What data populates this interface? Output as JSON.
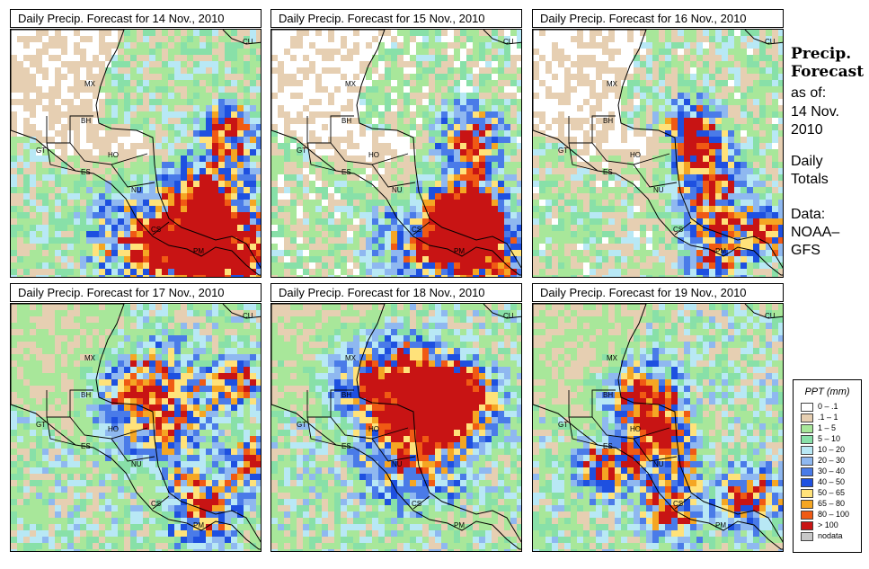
{
  "panels": [
    {
      "title": "Daily Precip. Forecast for  14 Nov., 2010",
      "seed": 11,
      "wet": 0.55,
      "hot": [
        [
          0.86,
          0.4,
          0.07
        ],
        [
          0.8,
          0.62,
          0.09
        ],
        [
          0.55,
          0.82,
          0.14
        ],
        [
          0.92,
          0.9,
          0.12
        ],
        [
          0.72,
          0.86,
          0.1
        ]
      ]
    },
    {
      "title": "Daily Precip. Forecast for  15 Nov., 2010",
      "seed": 23,
      "wet": 0.35,
      "hot": [
        [
          0.78,
          0.42,
          0.08
        ],
        [
          0.8,
          0.68,
          0.09
        ],
        [
          0.62,
          0.86,
          0.13
        ],
        [
          0.9,
          0.92,
          0.1
        ],
        [
          0.74,
          0.78,
          0.08
        ]
      ]
    },
    {
      "title": "Daily Precip. Forecast for  16 Nov., 2010",
      "seed": 37,
      "wet": 0.45,
      "hot": [
        [
          0.62,
          0.4,
          0.08
        ],
        [
          0.68,
          0.62,
          0.1
        ],
        [
          0.72,
          0.86,
          0.08
        ],
        [
          0.92,
          0.8,
          0.07
        ]
      ]
    },
    {
      "title": "Daily Precip. Forecast for  17 Nov., 2010",
      "seed": 41,
      "wet": 0.7,
      "hot": [
        [
          0.55,
          0.4,
          0.14
        ],
        [
          0.88,
          0.3,
          0.06
        ],
        [
          0.95,
          0.62,
          0.06
        ],
        [
          0.75,
          0.8,
          0.09
        ]
      ]
    },
    {
      "title": "Daily Precip. Forecast for  18 Nov., 2010",
      "seed": 53,
      "wet": 0.75,
      "hot": [
        [
          0.4,
          0.32,
          0.12
        ],
        [
          0.62,
          0.32,
          0.1
        ],
        [
          0.75,
          0.4,
          0.1
        ],
        [
          0.55,
          0.6,
          0.12
        ]
      ]
    },
    {
      "title": "Daily Precip. Forecast for  19 Nov., 2010",
      "seed": 67,
      "wet": 0.7,
      "hot": [
        [
          0.42,
          0.38,
          0.1
        ],
        [
          0.5,
          0.56,
          0.09
        ],
        [
          0.28,
          0.65,
          0.07
        ],
        [
          0.55,
          0.8,
          0.08
        ],
        [
          0.85,
          0.78,
          0.08
        ]
      ]
    }
  ],
  "map_labels": [
    {
      "id": "mx",
      "text": "MX"
    },
    {
      "id": "cu",
      "text": "CU"
    },
    {
      "id": "bh",
      "text": "BH"
    },
    {
      "id": "gt",
      "text": "GT"
    },
    {
      "id": "ho",
      "text": "HO"
    },
    {
      "id": "es",
      "text": "ES"
    },
    {
      "id": "nu",
      "text": "NU"
    },
    {
      "id": "cs",
      "text": "CS"
    },
    {
      "id": "pm",
      "text": "PM"
    }
  ],
  "side": {
    "title1": "Precip.",
    "title2": "Forecast",
    "asof": "as of:",
    "date1": "14 Nov.",
    "date2": "2010",
    "daily1": "Daily",
    "daily2": "Totals",
    "data1": "Data:",
    "data2": "NOAA–",
    "data3": "GFS"
  },
  "legend": {
    "title": "PPT (mm)",
    "items": [
      {
        "label": "0 – .1",
        "color": "#ffffff"
      },
      {
        "label": ".1 – 1",
        "color": "#e6cfb2"
      },
      {
        "label": "1 – 5",
        "color": "#a8e79a"
      },
      {
        "label": "5 – 10",
        "color": "#88e0a8"
      },
      {
        "label": "10 – 20",
        "color": "#b8e8f5"
      },
      {
        "label": "20 – 30",
        "color": "#8fb8f0"
      },
      {
        "label": "30 – 40",
        "color": "#4a7be8"
      },
      {
        "label": "40 – 50",
        "color": "#1e50e0"
      },
      {
        "label": "50 – 65",
        "color": "#ffe27a"
      },
      {
        "label": "65 – 80",
        "color": "#f5a623"
      },
      {
        "label": "80 – 100",
        "color": "#f05a14"
      },
      {
        "label": "> 100",
        "color": "#c81414"
      },
      {
        "label": "nodata",
        "color": "#c8c8c8"
      }
    ]
  }
}
